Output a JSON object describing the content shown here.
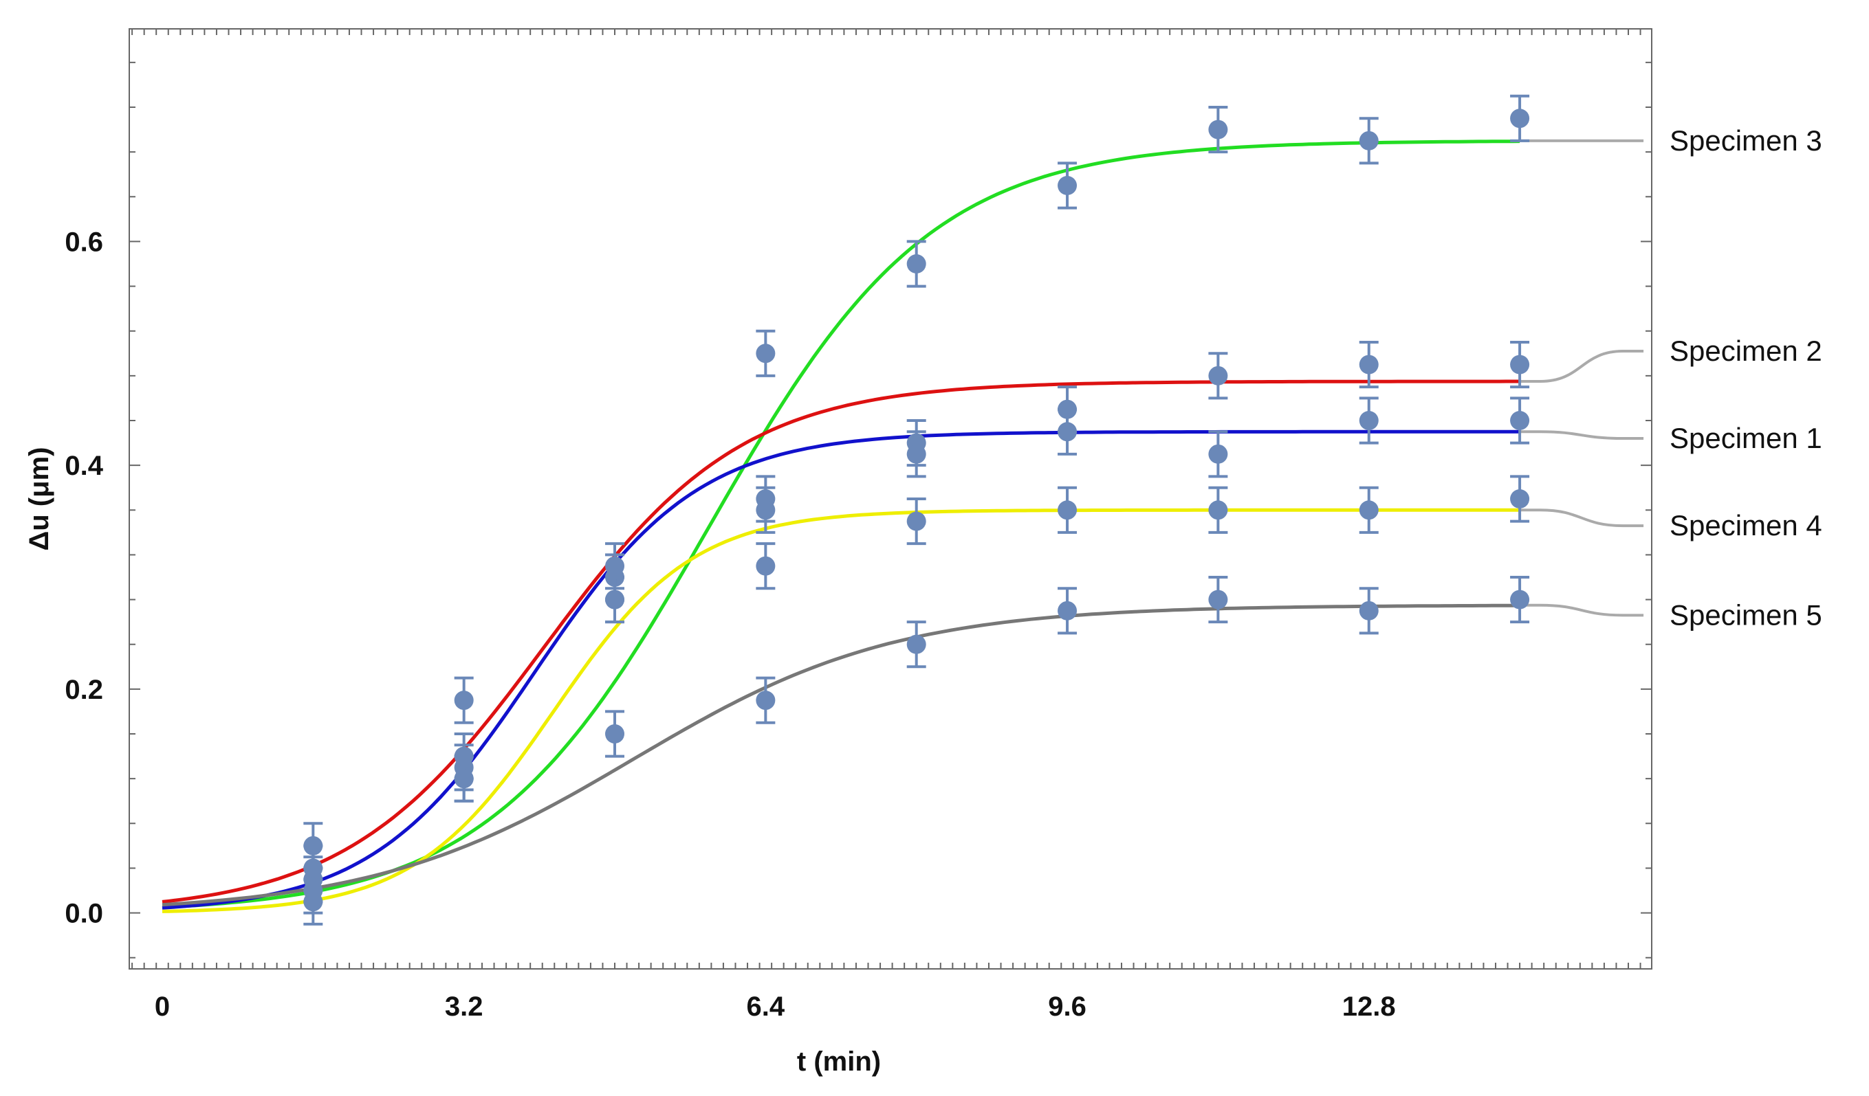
{
  "chart_data": {
    "type": "line",
    "title": "",
    "xlabel": "t (min)",
    "ylabel": "Δu (μm)",
    "xlim": [
      -0.35,
      15.8
    ],
    "ylim": [
      -0.05,
      0.79
    ],
    "xticks": [
      0,
      3.2,
      6.4,
      9.6,
      12.8
    ],
    "xtick_labels": [
      "0",
      "3.2",
      "6.4",
      "9.6",
      "12.8"
    ],
    "yticks": [
      0.0,
      0.2,
      0.4,
      0.6
    ],
    "ytick_labels": [
      "0.0",
      "0.2",
      "0.4",
      "0.6"
    ],
    "grid": false,
    "error_bar": 0.02,
    "fit_range": [
      0,
      14.4
    ],
    "series": [
      {
        "name": "Specimen 3",
        "color": "#22dd22",
        "fit": {
          "L": 0.69,
          "k": 0.85,
          "t0": 5.8
        },
        "points": [
          [
            1.6,
            0.03
          ],
          [
            3.2,
            0.12
          ],
          [
            4.8,
            0.28
          ],
          [
            6.4,
            0.5
          ],
          [
            8.0,
            0.58
          ],
          [
            9.6,
            0.65
          ],
          [
            11.2,
            0.7
          ],
          [
            12.8,
            0.69
          ],
          [
            14.4,
            0.71
          ]
        ]
      },
      {
        "name": "Specimen 2",
        "color": "#dd1111",
        "fit": {
          "L": 0.475,
          "k": 0.95,
          "t0": 4.05
        },
        "points": [
          [
            1.6,
            0.06
          ],
          [
            3.2,
            0.19
          ],
          [
            4.8,
            0.3
          ],
          [
            6.4,
            0.37
          ],
          [
            8.0,
            0.42
          ],
          [
            9.6,
            0.45
          ],
          [
            11.2,
            0.48
          ],
          [
            12.8,
            0.49
          ],
          [
            14.4,
            0.49
          ]
        ]
      },
      {
        "name": "Specimen 1",
        "color": "#1111cc",
        "fit": {
          "L": 0.43,
          "k": 1.15,
          "t0": 3.95
        },
        "points": [
          [
            1.6,
            0.02
          ],
          [
            3.2,
            0.13
          ],
          [
            4.8,
            0.31
          ],
          [
            6.4,
            0.36
          ],
          [
            8.0,
            0.41
          ],
          [
            9.6,
            0.43
          ],
          [
            11.2,
            0.41
          ],
          [
            12.8,
            0.44
          ],
          [
            14.4,
            0.44
          ]
        ]
      },
      {
        "name": "Specimen 4",
        "color": "#eeee00",
        "fit": {
          "L": 0.36,
          "k": 1.35,
          "t0": 4.15
        },
        "points": [
          [
            1.6,
            0.01
          ],
          [
            3.2,
            0.14
          ],
          [
            4.8,
            0.28
          ],
          [
            6.4,
            0.31
          ],
          [
            8.0,
            0.35
          ],
          [
            9.6,
            0.36
          ],
          [
            11.2,
            0.36
          ],
          [
            12.8,
            0.36
          ],
          [
            14.4,
            0.37
          ]
        ]
      },
      {
        "name": "Specimen 5",
        "color": "#777777",
        "fit": {
          "L": 0.275,
          "k": 0.72,
          "t0": 5.0
        },
        "points": [
          [
            1.6,
            0.04
          ],
          [
            3.2,
            0.12
          ],
          [
            4.8,
            0.16
          ],
          [
            6.4,
            0.19
          ],
          [
            8.0,
            0.24
          ],
          [
            9.6,
            0.27
          ],
          [
            11.2,
            0.28
          ],
          [
            12.8,
            0.27
          ],
          [
            14.4,
            0.28
          ]
        ]
      }
    ],
    "legend": [
      {
        "label": "Specimen 3",
        "start_y": 0.69,
        "label_y": 0.69
      },
      {
        "label": "Specimen 2",
        "start_y": 0.475,
        "label_y": 0.502
      },
      {
        "label": "Specimen 1",
        "start_y": 0.43,
        "label_y": 0.424
      },
      {
        "label": "Specimen 4",
        "start_y": 0.36,
        "label_y": 0.346
      },
      {
        "label": "Specimen 5",
        "start_y": 0.275,
        "label_y": 0.266
      }
    ],
    "marker_color": "#6a88b8",
    "legend_line_color": "#aaaaaa"
  }
}
